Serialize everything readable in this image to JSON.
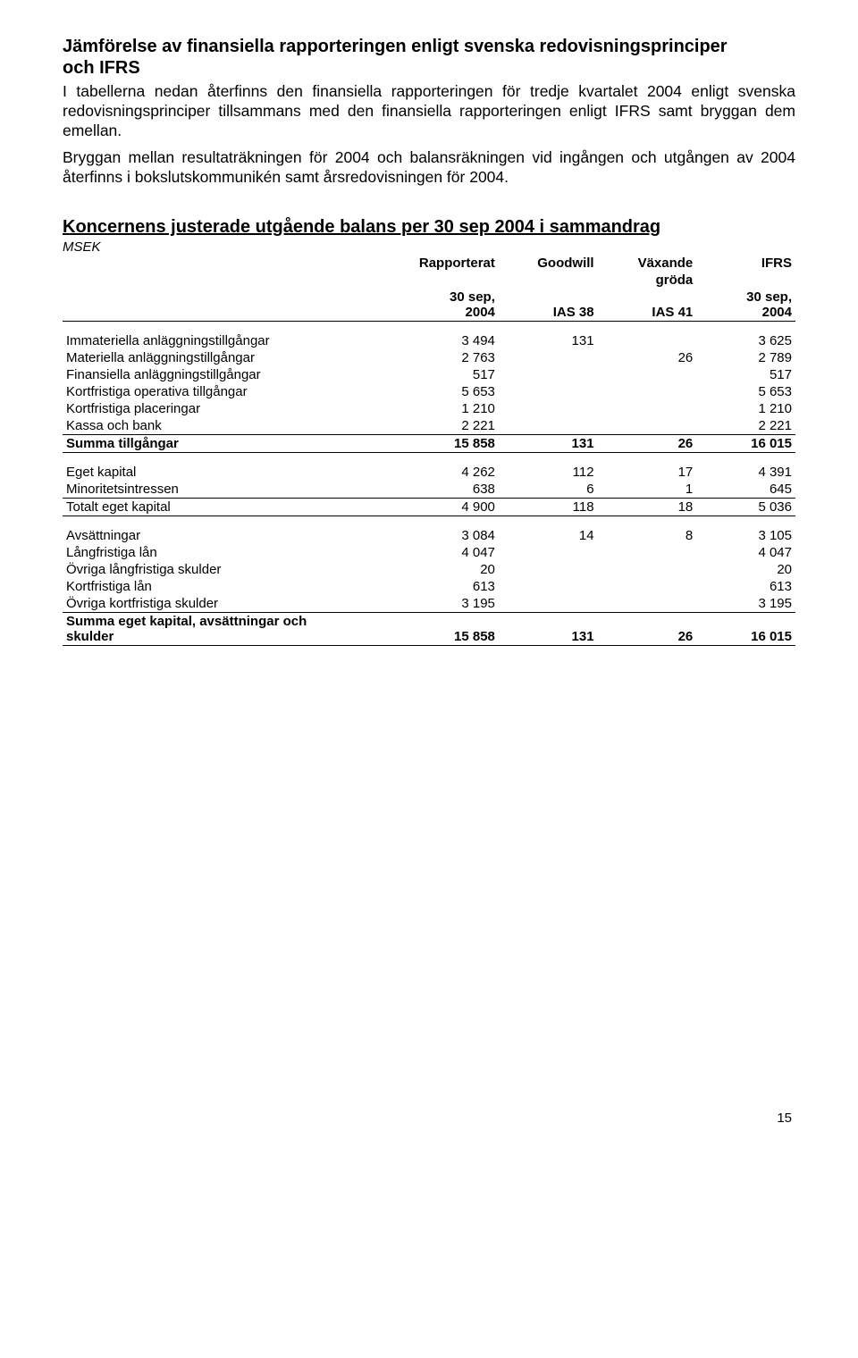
{
  "section": {
    "title_line1": "Jämförelse av finansiella rapporteringen enligt svenska redovisningsprinciper",
    "title_line2": "och IFRS",
    "p1": "I tabellerna nedan återfinns den finansiella rapporteringen för tredje kvartalet 2004 enligt svenska redovisningsprinciper tillsammans med den finansiella rapporteringen enligt IFRS samt bryggan dem emellan.",
    "p2": "Bryggan mellan resultaträkningen för 2004 och balansräkningen vid ingången och utgången av 2004 återfinns i bokslutskommunikén samt årsredovisningen för 2004."
  },
  "table": {
    "title": "Koncernens justerade utgående balans per 30 sep 2004 i sammandrag",
    "msek": "MSEK",
    "header": {
      "c1_top": "Rapporterat",
      "c2_top": "Goodwill",
      "c3_top": "Växande",
      "c3_mid": "gröda",
      "c4_top": "IFRS",
      "c1_bot": "30 sep, 2004",
      "c2_bot": "IAS 38",
      "c3_bot": "IAS 41",
      "c4_bot": "30 sep, 2004"
    },
    "block1": [
      {
        "label": "Immateriella anläggningstillgångar",
        "c1": "3 494",
        "c2": "131",
        "c3": "",
        "c4": "3 625"
      },
      {
        "label": "Materiella anläggningstillgångar",
        "c1": "2 763",
        "c2": "",
        "c3": "26",
        "c4": "2 789"
      },
      {
        "label": "Finansiella anläggningstillgångar",
        "c1": "517",
        "c2": "",
        "c3": "",
        "c4": "517"
      },
      {
        "label": "Kortfristiga operativa tillgångar",
        "c1": "5 653",
        "c2": "",
        "c3": "",
        "c4": "5 653"
      },
      {
        "label": "Kortfristiga placeringar",
        "c1": "1 210",
        "c2": "",
        "c3": "",
        "c4": "1 210"
      },
      {
        "label": "Kassa och bank",
        "c1": "2 221",
        "c2": "",
        "c3": "",
        "c4": "2 221"
      }
    ],
    "block1_total": {
      "label": "Summa tillgångar",
      "c1": "15 858",
      "c2": "131",
      "c3": "26",
      "c4": "16 015"
    },
    "block2": [
      {
        "label": "Eget kapital",
        "c1": "4 262",
        "c2": "112",
        "c3": "17",
        "c4": "4 391"
      },
      {
        "label": "Minoritetsintressen",
        "c1": "638",
        "c2": "6",
        "c3": "1",
        "c4": "645"
      }
    ],
    "block2_total": {
      "label": "Totalt eget kapital",
      "c1": "4 900",
      "c2": "118",
      "c3": "18",
      "c4": "5 036"
    },
    "block3": [
      {
        "label": "Avsättningar",
        "c1": "3 084",
        "c2": "14",
        "c3": "8",
        "c4": "3 105"
      },
      {
        "label": "Långfristiga lån",
        "c1": "4 047",
        "c2": "",
        "c3": "",
        "c4": "4 047"
      },
      {
        "label": "Övriga långfristiga skulder",
        "c1": "20",
        "c2": "",
        "c3": "",
        "c4": "20"
      },
      {
        "label": "Kortfristiga lån",
        "c1": "613",
        "c2": "",
        "c3": "",
        "c4": "613"
      },
      {
        "label": "Övriga kortfristiga skulder",
        "c1": "3 195",
        "c2": "",
        "c3": "",
        "c4": "3 195"
      }
    ],
    "block3_total": {
      "label": "Summa eget kapital, avsättningar och skulder",
      "c1": "15 858",
      "c2": "131",
      "c3": "26",
      "c4": "16 015"
    }
  },
  "page_number": "15"
}
